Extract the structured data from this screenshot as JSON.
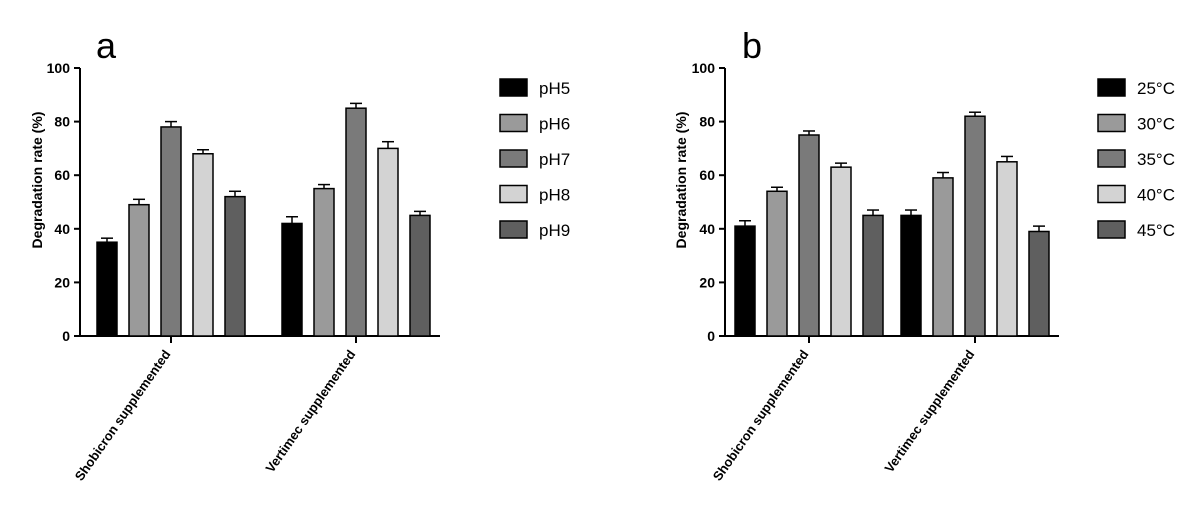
{
  "chart_data": [
    {
      "type": "bar",
      "panel_label": "a",
      "ylabel": "Degradation rate (%)",
      "ylim": [
        0,
        100
      ],
      "yticks": [
        0,
        20,
        40,
        60,
        80,
        100
      ],
      "categories": [
        "Shobicron supplemented",
        "Vertimec supplemented"
      ],
      "legend_position": "right",
      "series": [
        {
          "name": "pH5",
          "color": "#000000",
          "values": [
            35,
            42
          ],
          "errors": [
            1.5,
            2.5
          ]
        },
        {
          "name": "pH6",
          "color": "#9a9a9a",
          "values": [
            49,
            55
          ],
          "errors": [
            2,
            1.5
          ]
        },
        {
          "name": "pH7",
          "color": "#7a7a7a",
          "values": [
            78,
            85
          ],
          "errors": [
            2,
            1.8
          ]
        },
        {
          "name": "pH8",
          "color": "#d3d3d3",
          "values": [
            68,
            70
          ],
          "errors": [
            1.5,
            2.5
          ]
        },
        {
          "name": "pH9",
          "color": "#5f5f5f",
          "values": [
            52,
            45
          ],
          "errors": [
            2,
            1.5
          ]
        }
      ]
    },
    {
      "type": "bar",
      "panel_label": "b",
      "ylabel": "Degradation rate (%)",
      "ylim": [
        0,
        100
      ],
      "yticks": [
        0,
        20,
        40,
        60,
        80,
        100
      ],
      "categories": [
        "Shobicron supplemented",
        "Vertimec supplemented"
      ],
      "legend_position": "right",
      "series": [
        {
          "name": "25°C",
          "color": "#000000",
          "values": [
            41,
            45
          ],
          "errors": [
            2,
            2
          ]
        },
        {
          "name": "30°C",
          "color": "#9a9a9a",
          "values": [
            54,
            59
          ],
          "errors": [
            1.5,
            2
          ]
        },
        {
          "name": "35°C",
          "color": "#7a7a7a",
          "values": [
            75,
            82
          ],
          "errors": [
            1.5,
            1.5
          ]
        },
        {
          "name": "40°C",
          "color": "#d3d3d3",
          "values": [
            63,
            65
          ],
          "errors": [
            1.5,
            2
          ]
        },
        {
          "name": "45°C",
          "color": "#5f5f5f",
          "values": [
            45,
            39
          ],
          "errors": [
            2,
            2
          ]
        }
      ]
    }
  ]
}
